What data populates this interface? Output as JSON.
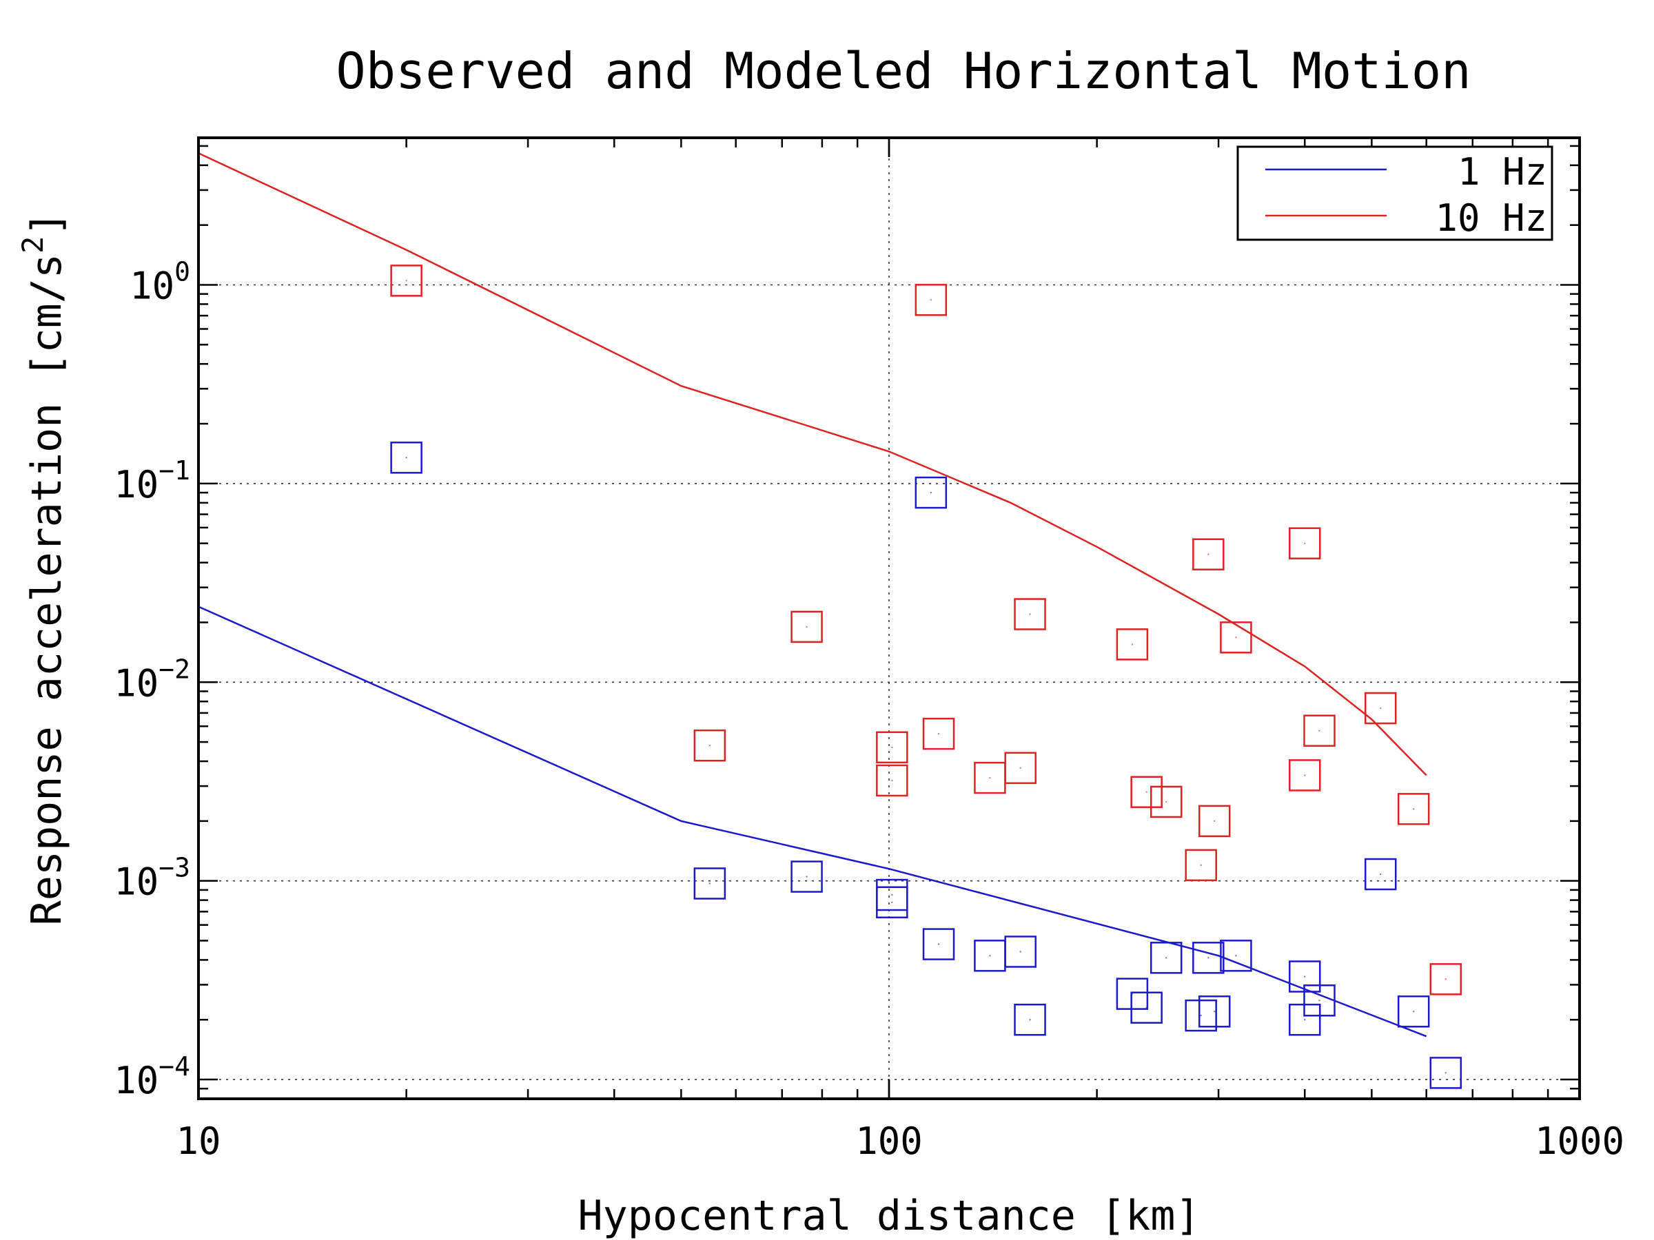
{
  "chart_data": {
    "type": "scatter",
    "title": "Observed and Modeled Horizontal Motion",
    "xlabel": "Hypocentral distance [km]",
    "ylabel_main": "Response acceleration [cm/s",
    "ylabel_sup": "2",
    "ylabel_end": "]",
    "xscale": "log",
    "yscale": "log",
    "xlim": [
      10,
      1000
    ],
    "ylim": [
      8e-05,
      5.5
    ],
    "grid": "dotted, at major ticks",
    "legend_position": "top-right",
    "x_ticks": [
      {
        "value": 10,
        "label": "10"
      },
      {
        "value": 100,
        "label": "100"
      },
      {
        "value": 1000,
        "label": "1000"
      }
    ],
    "y_ticks": [
      {
        "value": 1,
        "base": "10",
        "exp": "0"
      },
      {
        "value": 0.1,
        "base": "10",
        "exp": "−1"
      },
      {
        "value": 0.01,
        "base": "10",
        "exp": "−2"
      },
      {
        "value": 0.001,
        "base": "10",
        "exp": "−3"
      },
      {
        "value": 0.0001,
        "base": "10",
        "exp": "−4"
      }
    ],
    "series": [
      {
        "name": "1 Hz",
        "color": "#1a1acc",
        "model_line": [
          [
            10,
            0.024
          ],
          [
            50,
            0.002
          ],
          [
            100,
            0.00115
          ],
          [
            300,
            0.00042
          ],
          [
            600,
            0.000165
          ]
        ],
        "observed": [
          [
            20,
            0.135
          ],
          [
            115,
            0.09
          ],
          [
            55,
            0.00097
          ],
          [
            76,
            0.00105
          ],
          [
            101,
            0.00085
          ],
          [
            101,
            0.00078
          ],
          [
            118,
            0.00048
          ],
          [
            140,
            0.00042
          ],
          [
            155,
            0.00044
          ],
          [
            160,
            0.0002
          ],
          [
            225,
            0.00027
          ],
          [
            236,
            0.00023
          ],
          [
            252,
            0.00041
          ],
          [
            283,
            0.00021
          ],
          [
            290,
            0.00041
          ],
          [
            296,
            0.00022
          ],
          [
            318,
            0.00042
          ],
          [
            400,
            0.00033
          ],
          [
            400,
            0.0002
          ],
          [
            420,
            0.00025
          ],
          [
            515,
            0.00108
          ],
          [
            575,
            0.00022
          ],
          [
            640,
            0.000108
          ]
        ]
      },
      {
        "name": "10 Hz",
        "color": "#dd2222",
        "model_line": [
          [
            10,
            4.6
          ],
          [
            20,
            1.5
          ],
          [
            50,
            0.31
          ],
          [
            100,
            0.145
          ],
          [
            150,
            0.08
          ],
          [
            200,
            0.048
          ],
          [
            300,
            0.022
          ],
          [
            400,
            0.012
          ],
          [
            500,
            0.0065
          ],
          [
            600,
            0.0034
          ]
        ],
        "observed": [
          [
            20,
            1.05
          ],
          [
            115,
            0.84
          ],
          [
            55,
            0.0048
          ],
          [
            76,
            0.019
          ],
          [
            101,
            0.0047
          ],
          [
            101,
            0.0032
          ],
          [
            118,
            0.0055
          ],
          [
            140,
            0.0033
          ],
          [
            155,
            0.0037
          ],
          [
            160,
            0.022
          ],
          [
            225,
            0.0155
          ],
          [
            236,
            0.0028
          ],
          [
            252,
            0.0025
          ],
          [
            283,
            0.0012
          ],
          [
            290,
            0.044
          ],
          [
            296,
            0.002
          ],
          [
            318,
            0.0168
          ],
          [
            400,
            0.05
          ],
          [
            400,
            0.0034
          ],
          [
            420,
            0.0057
          ],
          [
            515,
            0.0074
          ],
          [
            575,
            0.0023
          ],
          [
            640,
            0.00032
          ]
        ]
      }
    ]
  }
}
